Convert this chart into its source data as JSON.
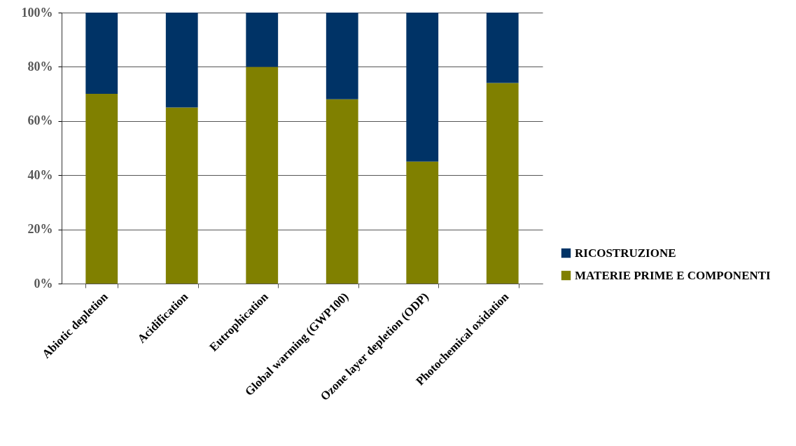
{
  "chart_data": {
    "type": "bar",
    "stacked": true,
    "categories": [
      "Abiotic depletion",
      "Acidification",
      "Eutrophication",
      "Global warming (GWP100)",
      "Ozone layer depletion (ODP)",
      "Photochemical oxidation"
    ],
    "series": [
      {
        "name": "MATERIE PRIME E COMPONENTI",
        "color": "#808000",
        "values": [
          70,
          65,
          80,
          68,
          45,
          74
        ]
      },
      {
        "name": "RICOSTRUZIONE",
        "color": "#003366",
        "values": [
          30,
          35,
          20,
          32,
          55,
          26
        ]
      }
    ],
    "ylim": [
      0,
      100
    ],
    "yticks": [
      {
        "value": 0,
        "label": "0%"
      },
      {
        "value": 20,
        "label": "20%"
      },
      {
        "value": 40,
        "label": "40%"
      },
      {
        "value": 60,
        "label": "60%"
      },
      {
        "value": 80,
        "label": "80%"
      },
      {
        "value": 100,
        "label": "100%"
      }
    ],
    "grid": "y",
    "legend": "right"
  }
}
